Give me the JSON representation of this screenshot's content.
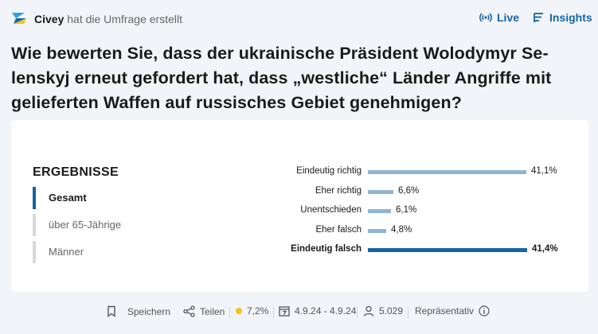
{
  "header": {
    "brand_name": "Civey",
    "brand_action": "hat die Umfrage erstellt",
    "live_label": "Live",
    "insights_label": "Insights",
    "accent_color": "#1565a6"
  },
  "question": "Wie bewerten Sie, dass der ukrainische Präsident Wolodymyr Se-lenskyj erneut gefordert hat, dass „westliche“ Länder Angriffe mit gelieferten Waffen auf russisches Gebiet genehmigen?",
  "results": {
    "title": "ERGEBNISSE",
    "filters": [
      {
        "label": "Gesamt",
        "active": true
      },
      {
        "label": "über 65-Jährige",
        "active": false
      },
      {
        "label": "Männer",
        "active": false
      }
    ]
  },
  "chart_data": {
    "type": "bar",
    "orientation": "horizontal",
    "categories": [
      "Eindeutig richtig",
      "Eher richtig",
      "Unentschieden",
      "Eher falsch",
      "Eindeutig falsch"
    ],
    "values": [
      41.1,
      6.6,
      6.1,
      4.8,
      41.4
    ],
    "value_labels": [
      "41,1%",
      "6,6%",
      "6,1%",
      "4,8%",
      "41,4%"
    ],
    "highlighted_index": 4,
    "unit": "%",
    "xlim": [
      0,
      41.4
    ]
  },
  "footer": {
    "save_label": "Speichern",
    "share_label": "Teilen",
    "margin_of_error": "7,2%",
    "date_range": "4.9.24 - 4.9.24",
    "participants": "5.029",
    "representative_label": "Repräsentativ"
  }
}
